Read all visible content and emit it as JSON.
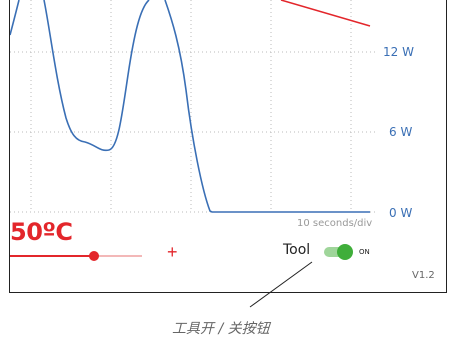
{
  "power_axis": {
    "labels": [
      "12 W",
      "6 W",
      "0 W"
    ]
  },
  "time_scale": "10 seconds/div",
  "temperature": {
    "value": "50ºC",
    "slider_level": 0.64
  },
  "controls": {
    "plus_label": "+",
    "tool_label": "Tool",
    "toggle_state": "ON"
  },
  "version": "V1.2",
  "caption": "工具开 / 关按钮",
  "colors": {
    "power_line": "#3a6fb5",
    "temperature_line": "#e3262b",
    "toggle_on": "#3fae3a"
  }
}
